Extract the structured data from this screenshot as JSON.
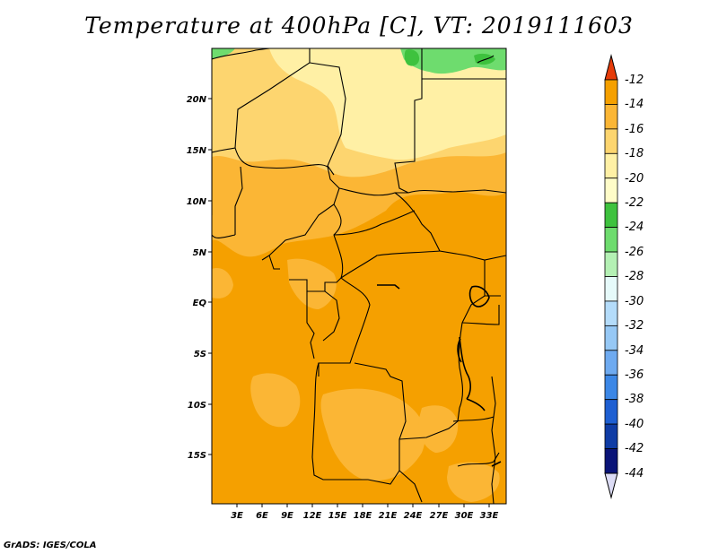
{
  "title": "Temperature at 400hPa [C], VT: 2019111603",
  "credit": "GrADS: IGES/COLA",
  "map": {
    "lat_labels": [
      "20N",
      "15N",
      "10N",
      "5N",
      "EQ",
      "5S",
      "10S",
      "15S"
    ],
    "lon_labels": [
      "3E",
      "6E",
      "9E",
      "12E",
      "15E",
      "18E",
      "21E",
      "24E",
      "27E",
      "30E",
      "33E"
    ]
  },
  "colors": {
    "c_m14_m12": "#f5a000",
    "c_m16_m14": "#fbb635",
    "c_m18_m16": "#fdd56f",
    "c_m20_m18": "#fff0a5",
    "c_m24_m22": "#3ec23e",
    "c_m26_m24": "#6edc6e",
    "border": "#000000"
  },
  "colorbar": {
    "labels": [
      "-12",
      "-14",
      "-16",
      "-18",
      "-20",
      "-22",
      "-24",
      "-26",
      "-28",
      "-30",
      "-32",
      "-34",
      "-36",
      "-38",
      "-40",
      "-42",
      "-44"
    ],
    "colors": [
      "#f0600a",
      "#f5a000",
      "#fbb635",
      "#fdd56f",
      "#fff0a5",
      "#fffcc8",
      "#3ec23e",
      "#6edc6e",
      "#b4f0b4",
      "#e6fafa",
      "#b4dcfa",
      "#96c8f5",
      "#6eaaf0",
      "#3c87e6",
      "#1e5fd2",
      "#0f3ca5",
      "#0a1478"
    ],
    "top_arrow_color": "#e63c0a",
    "bottom_arrow_color": "#dcdcf5"
  }
}
